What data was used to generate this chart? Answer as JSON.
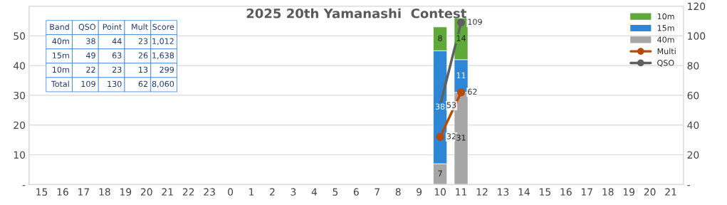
{
  "chart_data": {
    "type": "bar",
    "title": "2025 20th Yamanashi  Contest",
    "categories": [
      "15",
      "16",
      "17",
      "18",
      "19",
      "20",
      "21",
      "22",
      "23",
      "0",
      "1",
      "2",
      "3",
      "4",
      "5",
      "6",
      "7",
      "8",
      "9",
      "10",
      "11",
      "12",
      "13",
      "14",
      "15",
      "16",
      "17",
      "18",
      "19",
      "20",
      "21"
    ],
    "stacked": true,
    "series": [
      {
        "name": "40m",
        "color": "#a6a6a6",
        "values": [
          null,
          null,
          null,
          null,
          null,
          null,
          null,
          null,
          null,
          null,
          null,
          null,
          null,
          null,
          null,
          null,
          null,
          null,
          null,
          7,
          31,
          null,
          null,
          null,
          null,
          null,
          null,
          null,
          null,
          null,
          null
        ]
      },
      {
        "name": "15m",
        "color": "#2e86d6",
        "values": [
          null,
          null,
          null,
          null,
          null,
          null,
          null,
          null,
          null,
          null,
          null,
          null,
          null,
          null,
          null,
          null,
          null,
          null,
          null,
          38,
          11,
          null,
          null,
          null,
          null,
          null,
          null,
          null,
          null,
          null,
          null
        ]
      },
      {
        "name": "10m",
        "color": "#5fa83a",
        "values": [
          null,
          null,
          null,
          null,
          null,
          null,
          null,
          null,
          null,
          null,
          null,
          null,
          null,
          null,
          null,
          null,
          null,
          null,
          null,
          8,
          14,
          null,
          null,
          null,
          null,
          null,
          null,
          null,
          null,
          null,
          null
        ]
      },
      {
        "name": "Multi",
        "type": "line",
        "axis": "y2",
        "color": "#b84a0a",
        "marker": "circle",
        "values": [
          null,
          null,
          null,
          null,
          null,
          null,
          null,
          null,
          null,
          null,
          null,
          null,
          null,
          null,
          null,
          null,
          null,
          null,
          null,
          32,
          62,
          null,
          null,
          null,
          null,
          null,
          null,
          null,
          null,
          null,
          null
        ]
      },
      {
        "name": "QSO",
        "type": "line",
        "axis": "y2",
        "color": "#5f5f5f",
        "marker": "circle",
        "values": [
          null,
          null,
          null,
          null,
          null,
          null,
          null,
          null,
          null,
          null,
          null,
          null,
          null,
          null,
          null,
          null,
          null,
          null,
          null,
          53,
          109,
          null,
          null,
          null,
          null,
          null,
          null,
          null,
          null,
          null,
          null
        ]
      }
    ],
    "ylim": [
      0,
      60
    ],
    "yticks": [
      {
        "value": 0,
        "label": "-"
      },
      10,
      20,
      30,
      40,
      50
    ],
    "y2lim": [
      0,
      120
    ],
    "y2ticks": [
      {
        "value": 0,
        "label": "-"
      },
      20,
      40,
      60,
      80,
      100,
      120
    ],
    "data_labels": true,
    "grid": "y",
    "legend": "top right",
    "annotations": [
      "Band",
      "QSO",
      "Point",
      "Mult",
      "Score",
      "40m",
      "38",
      "44",
      "23",
      "1,012",
      "15m",
      "49",
      "63",
      "26",
      "1,638",
      "10m",
      "22",
      "23",
      "13",
      "299",
      "Total",
      "109",
      "130",
      "62",
      "8,060"
    ]
  }
}
